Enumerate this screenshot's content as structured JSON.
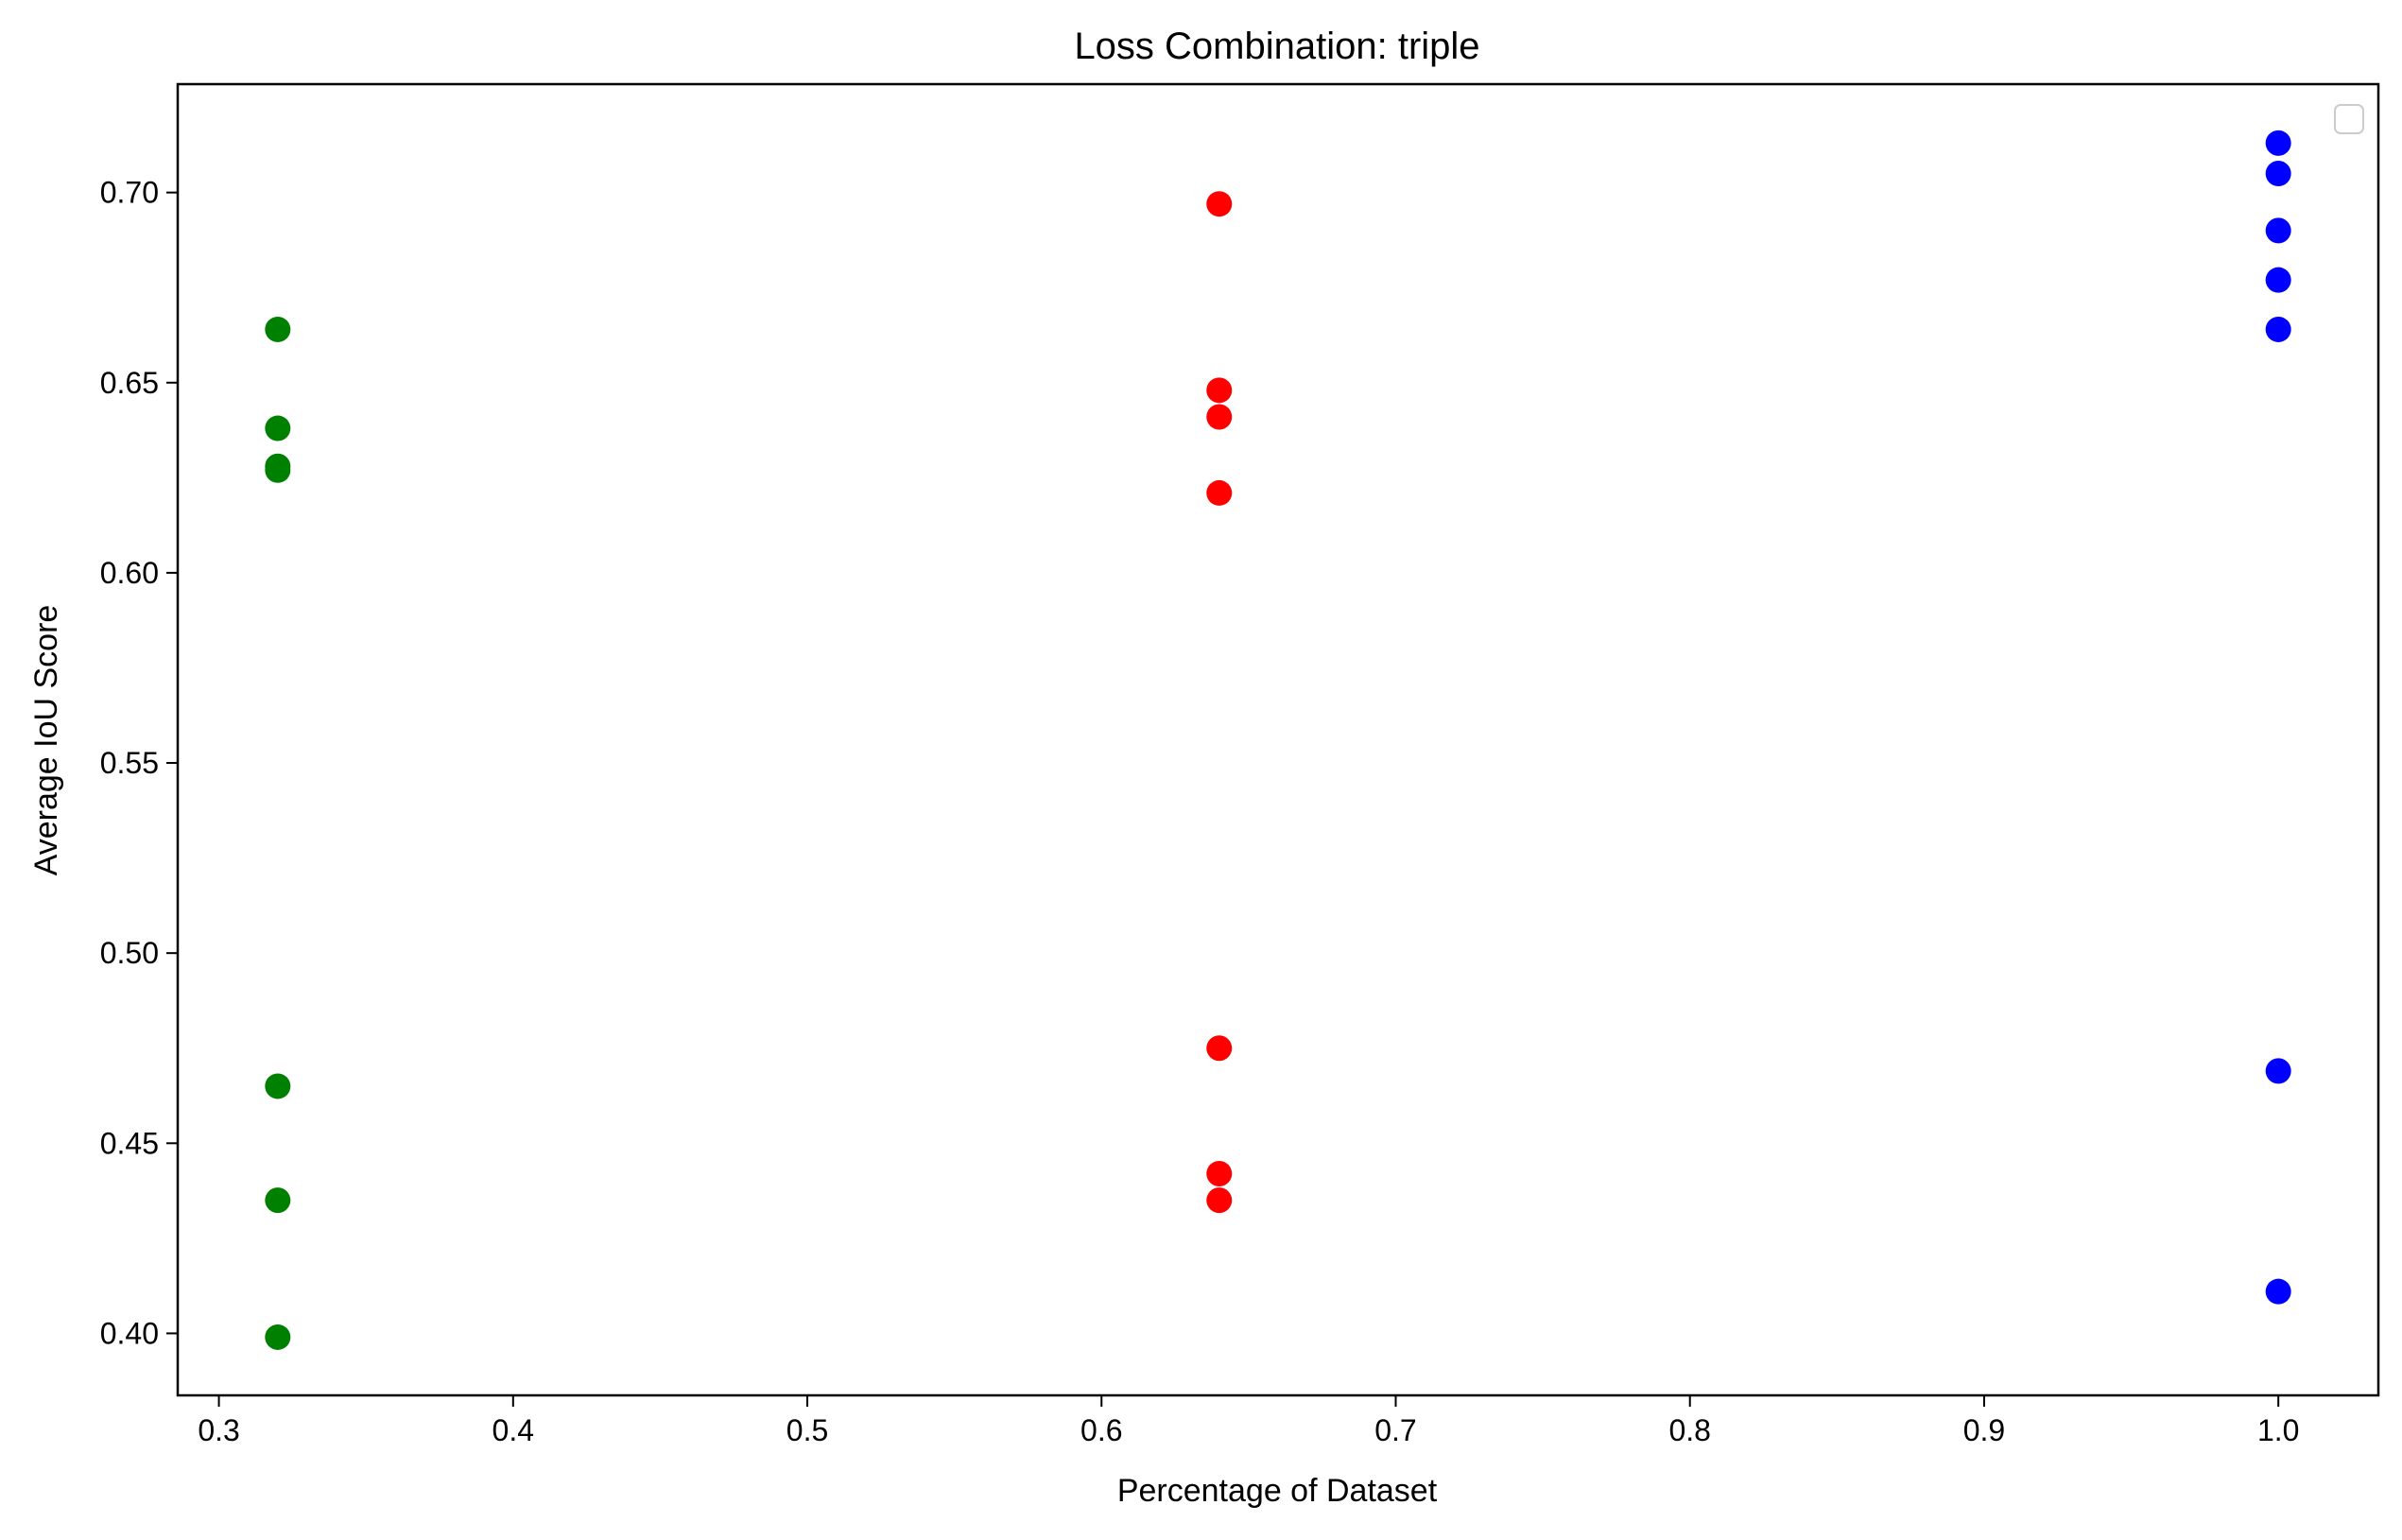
{
  "chart_data": {
    "type": "scatter",
    "title": "Loss Combination: triple",
    "xlabel": "Percentage of Dataset",
    "ylabel": "Average IoU Score",
    "xlim": [
      0.286,
      1.034
    ],
    "ylim": [
      0.3837,
      0.7285
    ],
    "xticks": [
      0.3,
      0.4,
      0.5,
      0.6,
      0.7,
      0.8,
      0.9,
      1.0
    ],
    "xtick_labels": [
      "0.3",
      "0.4",
      "0.5",
      "0.6",
      "0.7",
      "0.8",
      "0.9",
      "1.0"
    ],
    "yticks": [
      0.4,
      0.45,
      0.5,
      0.55,
      0.6,
      0.65,
      0.7
    ],
    "ytick_labels": [
      "0.40",
      "0.45",
      "0.50",
      "0.55",
      "0.60",
      "0.65",
      "0.70"
    ],
    "grid": false,
    "legend": {
      "placement": "top-right",
      "entries": []
    },
    "series": [
      {
        "color": "#008000",
        "points": [
          {
            "x": 0.32,
            "y": 0.664
          },
          {
            "x": 0.32,
            "y": 0.638
          },
          {
            "x": 0.32,
            "y": 0.628
          },
          {
            "x": 0.32,
            "y": 0.627
          },
          {
            "x": 0.32,
            "y": 0.465
          },
          {
            "x": 0.32,
            "y": 0.435
          },
          {
            "x": 0.32,
            "y": 0.399
          }
        ]
      },
      {
        "color": "#ff0000",
        "points": [
          {
            "x": 0.64,
            "y": 0.697
          },
          {
            "x": 0.64,
            "y": 0.648
          },
          {
            "x": 0.64,
            "y": 0.641
          },
          {
            "x": 0.64,
            "y": 0.621
          },
          {
            "x": 0.64,
            "y": 0.475
          },
          {
            "x": 0.64,
            "y": 0.442
          },
          {
            "x": 0.64,
            "y": 0.435
          }
        ]
      },
      {
        "color": "#0000ff",
        "points": [
          {
            "x": 1.0,
            "y": 0.713
          },
          {
            "x": 1.0,
            "y": 0.705
          },
          {
            "x": 1.0,
            "y": 0.69
          },
          {
            "x": 1.0,
            "y": 0.677
          },
          {
            "x": 1.0,
            "y": 0.664
          },
          {
            "x": 1.0,
            "y": 0.469
          },
          {
            "x": 1.0,
            "y": 0.411
          }
        ]
      }
    ]
  }
}
